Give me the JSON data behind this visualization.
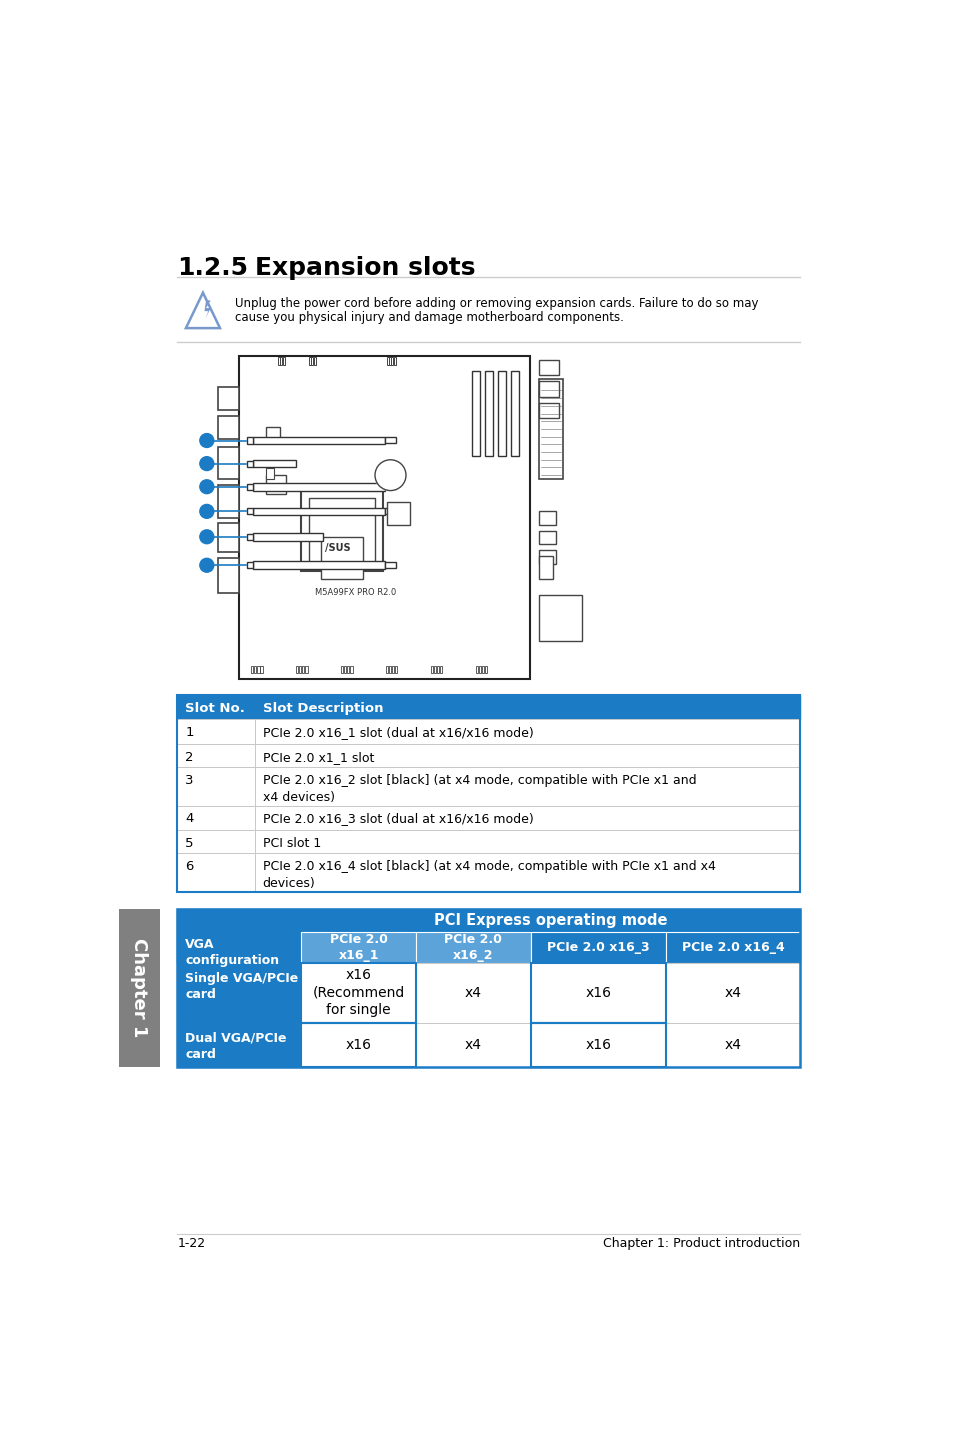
{
  "title_num": "1.2.5",
  "title_text": "Expansion slots",
  "warning_text_line1": "Unplug the power cord before adding or removing expansion cards. Failure to do so may",
  "warning_text_line2": "cause you physical injury and damage motherboard components.",
  "slot_table_header": [
    "Slot No.",
    "Slot Description"
  ],
  "slot_table_rows": [
    [
      "1",
      "PCIe 2.0 x16_1 slot (dual at x16/x16 mode)"
    ],
    [
      "2",
      "PCIe 2.0 x1_1 slot"
    ],
    [
      "3",
      "PCIe 2.0 x16_2 slot [black] (at x4 mode, compatible with PCIe x1 and\nx4 devices)"
    ],
    [
      "4",
      "PCIe 2.0 x16_3 slot (dual at x16/x16 mode)"
    ],
    [
      "5",
      "PCI slot 1"
    ],
    [
      "6",
      "PCIe 2.0 x16_4 slot [black] (at x4 mode, compatible with PCIe x1 and x4\ndevices)"
    ]
  ],
  "pci_table_header_main": "PCI Express operating mode",
  "pci_table_col1": "VGA\nconfiguration",
  "pci_table_subheaders": [
    "PCIe 2.0\nx16_1",
    "PCIe 2.0\nx16_2",
    "PCIe 2.0 x16_3",
    "PCIe 2.0 x16_4"
  ],
  "pci_table_rows": [
    [
      "Single VGA/PCIe\ncard",
      "x16\n(Recommend\nfor single",
      "x4",
      "x16",
      "x4"
    ],
    [
      "Dual VGA/PCIe\ncard",
      "x16",
      "x4",
      "x16",
      "x4"
    ]
  ],
  "footer_left": "1-22",
  "footer_right": "Chapter 1: Product introduction",
  "chapter_label": "Chapter 1",
  "header_blue": "#1B7BC4",
  "light_blue_header": "#5BA3D9",
  "border_gray": "#C8C8C8",
  "side_tab_gray": "#808080"
}
